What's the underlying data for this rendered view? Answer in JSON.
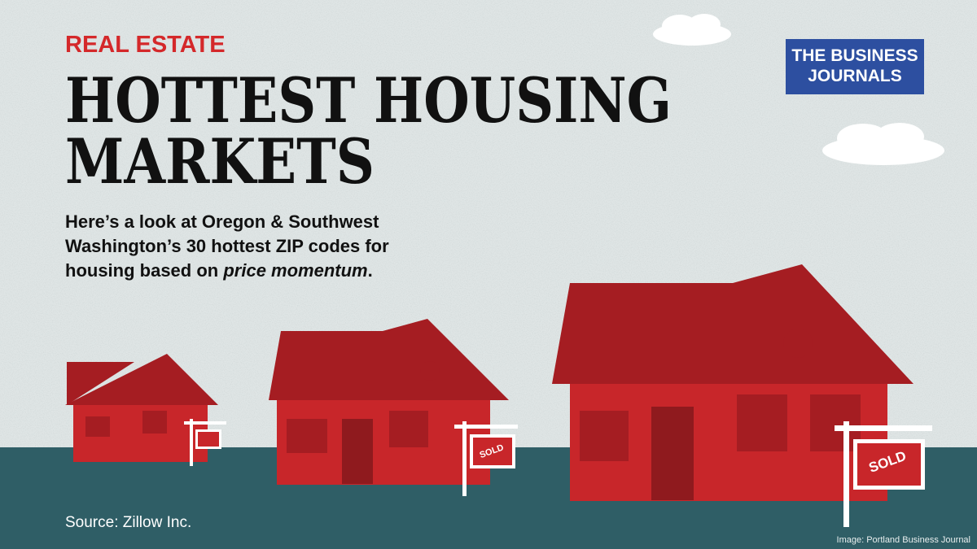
{
  "header": {
    "kicker": "REAL ESTATE",
    "title_lines": [
      "HOTTEST HOUSING",
      "MARKETS"
    ]
  },
  "logo": {
    "lines": [
      "THE BUSINESS",
      "JOURNALS"
    ]
  },
  "subtitle": {
    "lines": [
      "Here’s a look at Oregon & Southwest",
      "Washington’s 30 hottest ZIP codes for",
      "housing based on "
    ],
    "emphasis": "price momentum",
    "end": "."
  },
  "signs": [
    "SOLD",
    "SOLD"
  ],
  "source": "Source: Zillow Inc.",
  "credit": "Image: Portland Business Journal"
}
